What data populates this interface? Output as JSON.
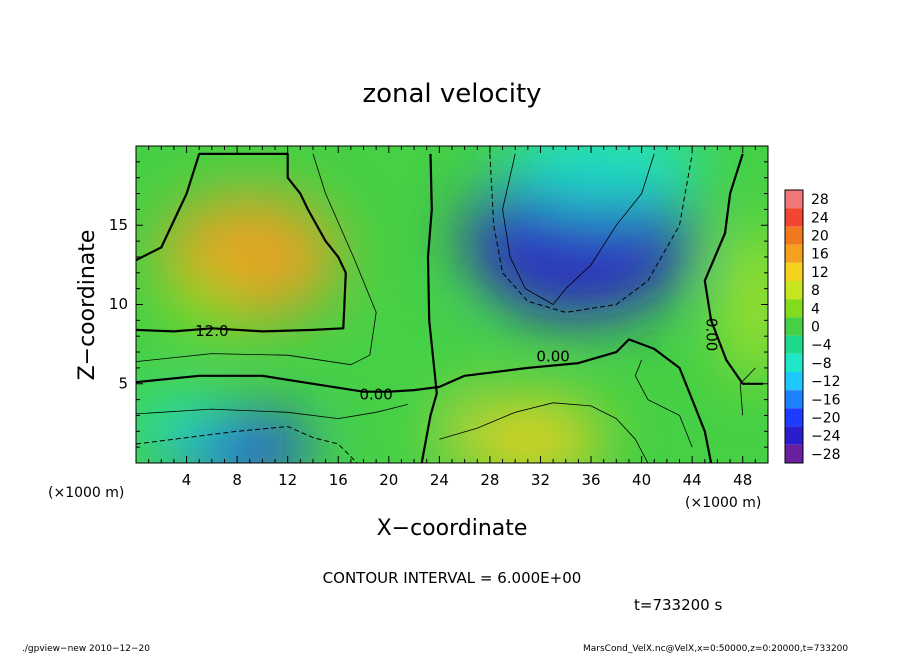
{
  "chart_data": {
    "type": "heatmap",
    "title": "zonal velocity",
    "xlabel": "X−coordinate",
    "ylabel": "Z−coordinate",
    "x_unit_left": "(×1000 m)",
    "x_unit_right": "(×1000 m)",
    "xlim": [
      0,
      50
    ],
    "ylim": [
      0,
      20
    ],
    "x_ticks": [
      4,
      8,
      12,
      16,
      20,
      24,
      28,
      32,
      36,
      40,
      44,
      48
    ],
    "y_ticks": [
      5,
      10,
      15
    ],
    "contour_interval_text": "CONTOUR INTERVAL = 6.000E+00",
    "time_text": "t=733200 s",
    "footer_left": "./gpview−new   2010−12−20",
    "footer_right": "MarsCond_VelX.nc@VelX,x=0:50000,z=0:20000,t=733200",
    "colorbar": {
      "levels": [
        28,
        24,
        20,
        16,
        12,
        8,
        4,
        0,
        -4,
        -8,
        -12,
        -16,
        -20,
        -24,
        -28
      ],
      "labels": [
        "28",
        "24",
        "20",
        "16",
        "12",
        "8",
        "4",
        "0",
        "−4",
        "−8",
        "−12",
        "−16",
        "−20",
        "−24",
        "−28"
      ]
    },
    "contour_labels": [
      {
        "text": "12.0",
        "x": 6,
        "z": 8.3
      },
      {
        "text": "0.00",
        "x": 19,
        "z": 4.3
      },
      {
        "text": "0.00",
        "x": 33,
        "z": 6.7
      },
      {
        "text": "0.00",
        "x": 45.5,
        "z": 8.1,
        "rotated": true
      }
    ],
    "field_blobs": [
      {
        "x": 9,
        "z": 13,
        "value": 18,
        "sx": 7,
        "sz": 4
      },
      {
        "x": 5,
        "z": 10,
        "value": 6,
        "sx": 2.5,
        "sz": 2
      },
      {
        "x": 35,
        "z": 14,
        "value": -22,
        "sx": 9,
        "sz": 5
      },
      {
        "x": 37,
        "z": 19,
        "value": -6,
        "sx": 8,
        "sz": 3
      },
      {
        "x": 8,
        "z": 1,
        "value": -20,
        "sx": 6,
        "sz": 2
      },
      {
        "x": 3,
        "z": 2.5,
        "value": -8,
        "sx": 4,
        "sz": 1.5
      },
      {
        "x": 31,
        "z": 1.5,
        "value": 12,
        "sx": 6,
        "sz": 2.5
      },
      {
        "x": 49,
        "z": 10,
        "value": 10,
        "sx": 2,
        "sz": 5
      },
      {
        "x": 22,
        "z": 5,
        "value": 2,
        "sx": 4,
        "sz": 4
      }
    ],
    "contours": [
      {
        "style": "thick",
        "points": [
          [
            0,
            12.8
          ],
          [
            2,
            13.6
          ],
          [
            4,
            17
          ],
          [
            5,
            19.5
          ],
          [
            12,
            19.5
          ],
          [
            12,
            18
          ],
          [
            13,
            17
          ],
          [
            13.6,
            16
          ],
          [
            15,
            14
          ],
          [
            16,
            13
          ],
          [
            16.6,
            12
          ],
          [
            16.4,
            8.5
          ],
          [
            14,
            8.4
          ],
          [
            10,
            8.3
          ],
          [
            6,
            8.5
          ],
          [
            3,
            8.3
          ],
          [
            0,
            8.4
          ]
        ]
      },
      {
        "style": "thin",
        "points": [
          [
            0,
            19.5
          ],
          [
            0,
            19.5
          ]
        ]
      },
      {
        "style": "thin",
        "points": [
          [
            0,
            6.4
          ],
          [
            6,
            6.9
          ],
          [
            12,
            6.8
          ],
          [
            17,
            6.2
          ],
          [
            18.5,
            6.8
          ],
          [
            19,
            9.5
          ],
          [
            17.2,
            13
          ],
          [
            15,
            17
          ],
          [
            14,
            19.5
          ]
        ]
      },
      {
        "style": "thick",
        "points": [
          [
            0,
            5.1
          ],
          [
            5,
            5.5
          ],
          [
            10,
            5.5
          ],
          [
            14,
            5.0
          ],
          [
            18,
            4.5
          ],
          [
            20,
            4.5
          ],
          [
            22,
            4.6
          ],
          [
            24,
            4.8
          ],
          [
            26,
            5.5
          ],
          [
            28,
            5.7
          ],
          [
            31,
            6.0
          ],
          [
            35,
            6.3
          ],
          [
            38,
            7.0
          ],
          [
            39,
            7.8
          ],
          [
            41,
            7.2
          ],
          [
            43,
            6.0
          ],
          [
            44,
            4.0
          ],
          [
            45,
            2.0
          ],
          [
            45.5,
            0
          ]
        ]
      },
      {
        "style": "thick",
        "points": [
          [
            22.6,
            0
          ],
          [
            23.3,
            3
          ],
          [
            23.8,
            4.4
          ],
          [
            23.2,
            9
          ],
          [
            23.1,
            13
          ],
          [
            23.4,
            16
          ],
          [
            23.3,
            19.5
          ]
        ]
      },
      {
        "style": "thick",
        "points": [
          [
            49.6,
            5
          ],
          [
            48,
            5
          ],
          [
            46.7,
            6.5
          ],
          [
            45.5,
            9
          ],
          [
            45,
            11.5
          ],
          [
            46.6,
            14.5
          ],
          [
            47,
            17
          ],
          [
            48,
            19.5
          ]
        ]
      },
      {
        "style": "thin",
        "points": [
          [
            30,
            19.5
          ],
          [
            29,
            16
          ],
          [
            29.6,
            13
          ],
          [
            30.8,
            11
          ],
          [
            33,
            10
          ],
          [
            34,
            11
          ],
          [
            36,
            12.5
          ],
          [
            38,
            15
          ],
          [
            40,
            17
          ],
          [
            41,
            19.5
          ]
        ]
      },
      {
        "style": "dashed",
        "points": [
          [
            28,
            19.5
          ],
          [
            28.3,
            15
          ],
          [
            29,
            12
          ],
          [
            31,
            10.2
          ],
          [
            34,
            9.5
          ],
          [
            38,
            10
          ],
          [
            40.5,
            11.5
          ],
          [
            43,
            15
          ],
          [
            44,
            19.5
          ]
        ]
      },
      {
        "style": "dashed",
        "points": [
          [
            0,
            1.2
          ],
          [
            4,
            1.6
          ],
          [
            8,
            2.0
          ],
          [
            12,
            2.3
          ],
          [
            14,
            1.6
          ],
          [
            16,
            1.2
          ],
          [
            17.5,
            0
          ]
        ]
      },
      {
        "style": "thin",
        "points": [
          [
            0,
            3.1
          ],
          [
            6,
            3.4
          ],
          [
            12,
            3.2
          ],
          [
            16,
            2.8
          ],
          [
            19,
            3.2
          ],
          [
            21.5,
            3.7
          ]
        ]
      },
      {
        "style": "thin",
        "points": [
          [
            24,
            1.5
          ],
          [
            27,
            2.2
          ],
          [
            30,
            3.2
          ],
          [
            33,
            3.8
          ],
          [
            36,
            3.6
          ],
          [
            38,
            2.8
          ],
          [
            39.5,
            1.5
          ],
          [
            40.5,
            0
          ]
        ]
      },
      {
        "style": "thin",
        "points": [
          [
            44,
            1
          ],
          [
            43,
            3
          ],
          [
            40.5,
            4
          ],
          [
            39.5,
            5.5
          ],
          [
            40,
            6.5
          ]
        ]
      },
      {
        "style": "thin",
        "points": [
          [
            48,
            3
          ],
          [
            47.8,
            5
          ],
          [
            49,
            6
          ]
        ]
      }
    ]
  }
}
